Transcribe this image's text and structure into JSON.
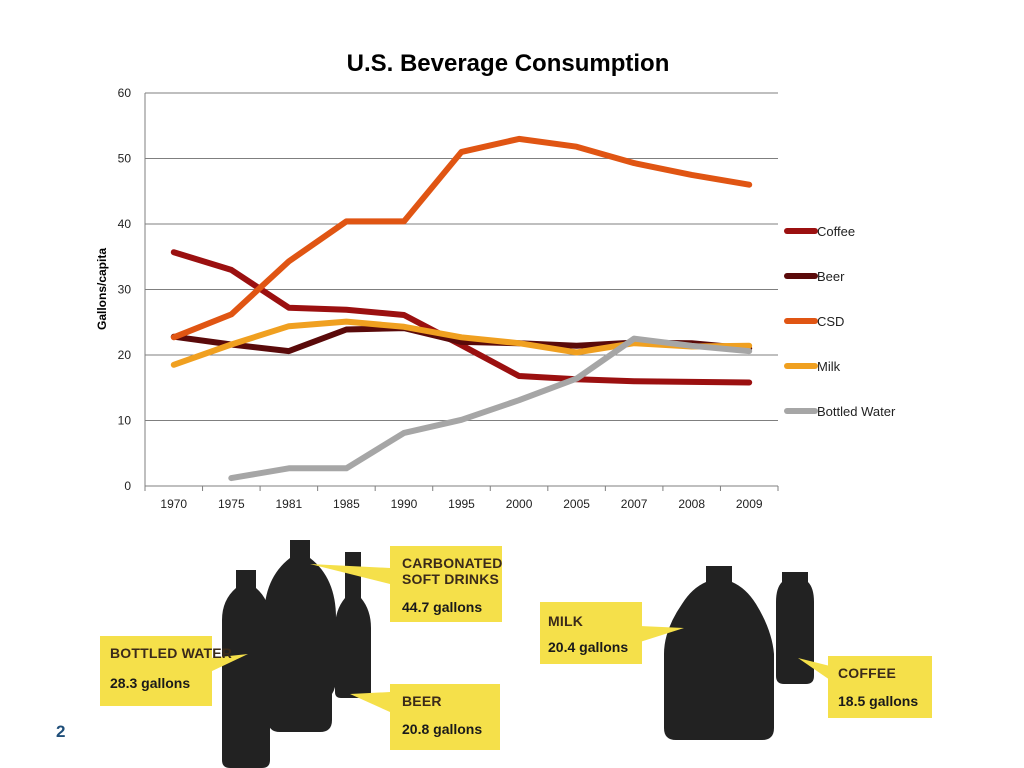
{
  "slide": {
    "number": "2"
  },
  "chart_data": {
    "type": "line",
    "title": "U.S. Beverage Consumption",
    "xlabel": "",
    "ylabel": "Gallons/capita",
    "categories": [
      "1970",
      "1975",
      "1981",
      "1985",
      "1990",
      "1995",
      "2000",
      "2005",
      "2007",
      "2008",
      "2009"
    ],
    "ylim": [
      0,
      60
    ],
    "yticks": [
      0,
      10,
      20,
      30,
      40,
      50,
      60
    ],
    "grid": true,
    "legend_position": "right",
    "series": [
      {
        "name": "Coffee",
        "color": "#9b1010",
        "values": [
          35.7,
          33.0,
          27.2,
          26.9,
          26.1,
          21.5,
          16.8,
          16.3,
          16.0,
          15.9,
          15.8
        ]
      },
      {
        "name": "Beer",
        "color": "#5a0a0a",
        "values": [
          22.8,
          21.6,
          20.6,
          23.9,
          24.1,
          22.0,
          21.8,
          21.4,
          21.9,
          21.8,
          21.0
        ]
      },
      {
        "name": "CSD",
        "color": "#e05513",
        "values": [
          22.7,
          26.2,
          34.3,
          40.4,
          40.4,
          51.0,
          53.0,
          51.8,
          49.3,
          47.5,
          46.0
        ]
      },
      {
        "name": "Milk",
        "color": "#f0a020",
        "values": [
          18.5,
          21.6,
          24.4,
          25.1,
          24.3,
          22.7,
          21.8,
          20.4,
          21.8,
          21.3,
          21.4
        ]
      },
      {
        "name": "Bottled Water",
        "color": "#a6a6a6",
        "values": [
          null,
          1.2,
          2.7,
          2.7,
          8.1,
          10.1,
          13.1,
          16.4,
          22.5,
          21.4,
          20.6
        ]
      }
    ]
  },
  "infographic": {
    "callouts": [
      {
        "title_lines": [
          "CARBONATED",
          "SOFT DRINKS"
        ],
        "value": "44.7 gallons"
      },
      {
        "title_lines": [
          "BOTTLED WATER"
        ],
        "value": "28.3 gallons"
      },
      {
        "title_lines": [
          "BEER"
        ],
        "value": "20.8 gallons"
      },
      {
        "title_lines": [
          "MILK"
        ],
        "value": "20.4 gallons"
      },
      {
        "title_lines": [
          "COFFEE"
        ],
        "value": "18.5 gallons"
      }
    ],
    "colors": {
      "callout": "#f5e04a",
      "silhouette": "#222222"
    }
  }
}
